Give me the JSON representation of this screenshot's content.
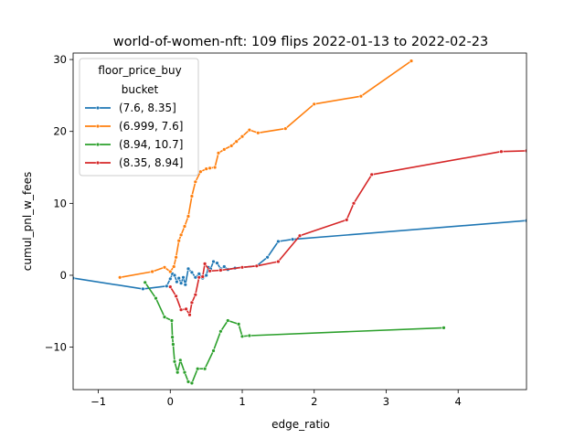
{
  "chart_data": {
    "type": "line",
    "title": "world-of-women-nft: 109 flips 2022-01-13 to 2022-02-23",
    "xlabel": "edge_ratio",
    "ylabel": "cumul_pnl_w_fees",
    "xlim": [
      -1.35,
      4.95
    ],
    "ylim": [
      -15.9,
      30.9
    ],
    "xticks": [
      -1,
      0,
      1,
      2,
      3,
      4
    ],
    "yticks": [
      -10,
      0,
      10,
      20,
      30
    ],
    "legend": {
      "title_line1": "floor_price_buy",
      "title_line2": "bucket",
      "placement": "upper-left"
    },
    "series": [
      {
        "name": "(7.6, 8.35]",
        "color": "#1f77b4",
        "points": [
          [
            -1.35,
            -0.4
          ],
          [
            -0.38,
            -1.9
          ],
          [
            -0.05,
            -1.5
          ],
          [
            0.0,
            -0.5
          ],
          [
            0.03,
            0.2
          ],
          [
            0.06,
            0.0
          ],
          [
            0.09,
            -0.9
          ],
          [
            0.12,
            -0.4
          ],
          [
            0.15,
            -1.1
          ],
          [
            0.18,
            -0.3
          ],
          [
            0.21,
            -1.3
          ],
          [
            0.25,
            0.9
          ],
          [
            0.3,
            0.4
          ],
          [
            0.35,
            -0.3
          ],
          [
            0.4,
            0.2
          ],
          [
            0.45,
            -0.4
          ],
          [
            0.5,
            0.0
          ],
          [
            0.53,
            1.1
          ],
          [
            0.56,
            0.9
          ],
          [
            0.6,
            1.9
          ],
          [
            0.65,
            1.7
          ],
          [
            0.7,
            0.9
          ],
          [
            0.75,
            1.2
          ],
          [
            0.8,
            0.8
          ],
          [
            0.9,
            1.0
          ],
          [
            1.0,
            1.1
          ],
          [
            1.2,
            1.3
          ],
          [
            1.35,
            2.5
          ],
          [
            1.5,
            4.7
          ],
          [
            1.7,
            5.0
          ],
          [
            4.95,
            7.6
          ]
        ]
      },
      {
        "name": "(6.999, 7.6]",
        "color": "#ff7f0e",
        "points": [
          [
            -0.7,
            -0.3
          ],
          [
            -0.25,
            0.5
          ],
          [
            -0.08,
            1.1
          ],
          [
            0.0,
            0.5
          ],
          [
            0.05,
            1.2
          ],
          [
            0.08,
            2.5
          ],
          [
            0.12,
            4.8
          ],
          [
            0.15,
            5.6
          ],
          [
            0.2,
            6.8
          ],
          [
            0.25,
            8.2
          ],
          [
            0.3,
            11.0
          ],
          [
            0.35,
            13.0
          ],
          [
            0.42,
            14.4
          ],
          [
            0.5,
            14.8
          ],
          [
            0.55,
            14.9
          ],
          [
            0.62,
            15.0
          ],
          [
            0.67,
            17.0
          ],
          [
            0.75,
            17.5
          ],
          [
            0.85,
            18.0
          ],
          [
            0.92,
            18.6
          ],
          [
            1.0,
            19.3
          ],
          [
            1.1,
            20.2
          ],
          [
            1.22,
            19.8
          ],
          [
            1.6,
            20.4
          ],
          [
            2.0,
            23.8
          ],
          [
            2.65,
            24.9
          ],
          [
            3.35,
            29.8
          ]
        ]
      },
      {
        "name": "(8.94, 10.7]",
        "color": "#2ca02c",
        "points": [
          [
            -0.35,
            -1.0
          ],
          [
            -0.2,
            -3.2
          ],
          [
            -0.08,
            -5.8
          ],
          [
            0.02,
            -6.3
          ],
          [
            0.03,
            -8.6
          ],
          [
            0.04,
            -9.6
          ],
          [
            0.06,
            -12.0
          ],
          [
            0.1,
            -13.5
          ],
          [
            0.14,
            -11.8
          ],
          [
            0.2,
            -13.5
          ],
          [
            0.25,
            -14.8
          ],
          [
            0.3,
            -15.0
          ],
          [
            0.38,
            -13.0
          ],
          [
            0.48,
            -13.0
          ],
          [
            0.6,
            -10.5
          ],
          [
            0.7,
            -7.8
          ],
          [
            0.8,
            -6.3
          ],
          [
            0.95,
            -6.8
          ],
          [
            1.0,
            -8.5
          ],
          [
            1.1,
            -8.4
          ],
          [
            3.8,
            -7.3
          ]
        ]
      },
      {
        "name": "(8.35, 8.94]",
        "color": "#d62728",
        "points": [
          [
            0.0,
            -1.6
          ],
          [
            0.08,
            -2.9
          ],
          [
            0.15,
            -4.8
          ],
          [
            0.22,
            -4.7
          ],
          [
            0.27,
            -5.5
          ],
          [
            0.3,
            -3.8
          ],
          [
            0.35,
            -2.7
          ],
          [
            0.4,
            -0.3
          ],
          [
            0.45,
            -0.2
          ],
          [
            0.48,
            1.6
          ],
          [
            0.55,
            0.6
          ],
          [
            0.7,
            0.7
          ],
          [
            1.0,
            1.1
          ],
          [
            1.2,
            1.3
          ],
          [
            1.5,
            1.9
          ],
          [
            1.8,
            5.5
          ],
          [
            2.45,
            7.7
          ],
          [
            2.55,
            10.0
          ],
          [
            2.8,
            14.0
          ],
          [
            4.6,
            17.2
          ],
          [
            4.95,
            17.3
          ]
        ]
      }
    ]
  }
}
